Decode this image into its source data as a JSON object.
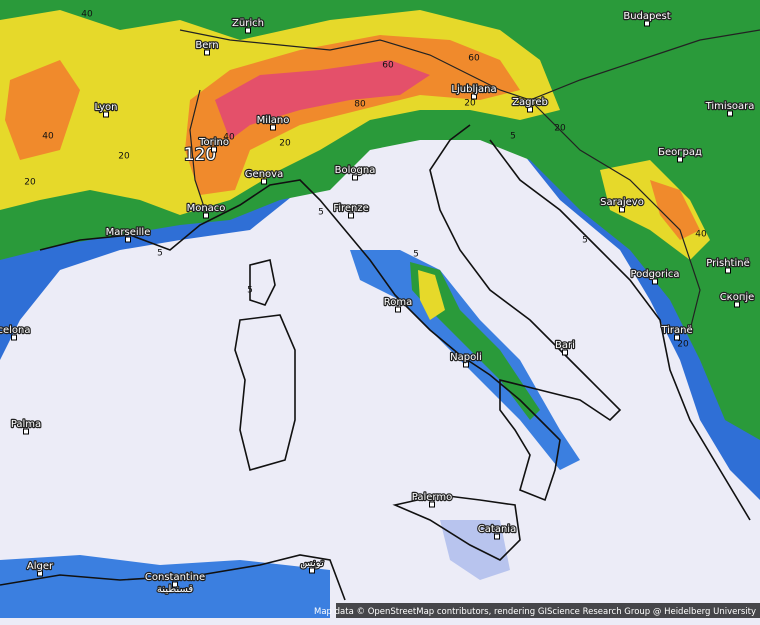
{
  "cities": [
    "Zürich",
    "Bern",
    "Budapest",
    "Lyon",
    "Milano",
    "Torino",
    "Ljubljana",
    "Zagreb",
    "Timisoara",
    "Београд",
    "Genova",
    "Bologna",
    "Monaco",
    "Firenze",
    "Marseille",
    "Sarajevo",
    "Podgorica",
    "Prishtinë",
    "Скопје",
    "Roma",
    "Tiranë",
    "celona",
    "Bari",
    "Napoli",
    "Palma",
    "Palermo",
    "Catania",
    "Alger",
    "Constantine",
    "قسنطينة",
    "تونس"
  ],
  "isoline_labels": [
    40,
    40,
    20,
    20,
    120,
    40,
    20,
    60,
    60,
    80,
    20,
    5,
    5,
    5,
    5,
    20,
    40,
    20,
    5,
    5
  ],
  "attribution": "Map data © OpenStreetMap contributors, rendering GIScience Research Group @ Heidelberg University"
}
